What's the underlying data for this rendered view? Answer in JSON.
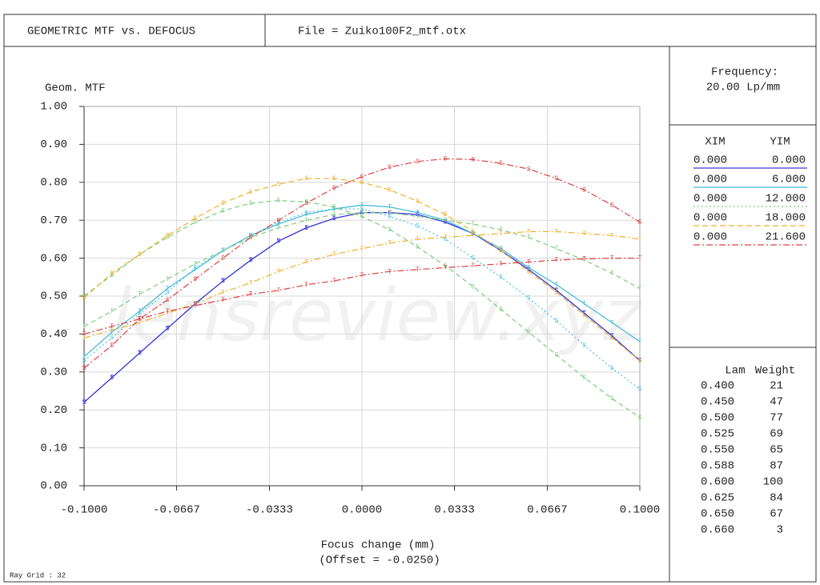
{
  "header": {
    "title": "GEOMETRIC MTF vs. DEFOCUS",
    "file": "File = Zuiko100F2_mtf.otx"
  },
  "frequency": {
    "label": "Frequency:",
    "value": "20.00  Lp/mm"
  },
  "fields": {
    "headers": [
      "XIM",
      "YIM"
    ],
    "rows": [
      {
        "xim": "0.000",
        "yim": "0.000",
        "color": "#3a3ad8",
        "dash": "none"
      },
      {
        "xim": "0.000",
        "yim": "6.000",
        "color": "#3cb8d8",
        "dash": "none"
      },
      {
        "xim": "0.000",
        "yim": "12.000",
        "color": "#7ccc7c",
        "dash": "2 3"
      },
      {
        "xim": "0.000",
        "yim": "18.000",
        "color": "#f0b030",
        "dash": "7 4"
      },
      {
        "xim": "0.000",
        "yim": "21.600",
        "color": "#e04040",
        "dash": "8 3 2 3"
      }
    ]
  },
  "wavelengths": {
    "headers": [
      "Lam",
      "Weight"
    ],
    "rows": [
      [
        "0.400",
        "21"
      ],
      [
        "0.450",
        "47"
      ],
      [
        "0.500",
        "77"
      ],
      [
        "0.525",
        "69"
      ],
      [
        "0.550",
        "65"
      ],
      [
        "0.588",
        "87"
      ],
      [
        "0.600",
        "100"
      ],
      [
        "0.625",
        "84"
      ],
      [
        "0.650",
        "67"
      ],
      [
        "0.660",
        "3"
      ]
    ]
  },
  "footer": "Ray Grid : 32",
  "watermark": "lensreview.xyz",
  "chart_data": {
    "type": "line",
    "ylabel": "Geom. MTF",
    "xlabel": "Focus change (mm)",
    "xsublabel": "(Offset = -0.0250)",
    "x": [
      -0.1,
      -0.09,
      -0.08,
      -0.07,
      -0.06,
      -0.05,
      -0.04,
      -0.03,
      -0.02,
      -0.01,
      0,
      0.01,
      0.02,
      0.03,
      0.04,
      0.05,
      0.06,
      0.07,
      0.08,
      0.09,
      0.1
    ],
    "xlim": [
      -0.1,
      0.1
    ],
    "ylim": [
      0,
      1
    ],
    "grid": true,
    "xticks": [
      {
        "value": -0.1,
        "label": "-0.1000"
      },
      {
        "value": -0.0667,
        "label": "-0.0667"
      },
      {
        "value": -0.0333,
        "label": "-0.0333"
      },
      {
        "value": 0,
        "label": "0.0000"
      },
      {
        "value": 0.0333,
        "label": "0.0333"
      },
      {
        "value": 0.0667,
        "label": "0.0667"
      },
      {
        "value": 0.1,
        "label": "0.1000"
      }
    ],
    "yticks": [
      {
        "value": 0,
        "label": "0.00"
      },
      {
        "value": 0.1,
        "label": "0.10"
      },
      {
        "value": 0.2,
        "label": "0.20"
      },
      {
        "value": 0.3,
        "label": "0.30"
      },
      {
        "value": 0.4,
        "label": "0.40"
      },
      {
        "value": 0.5,
        "label": "0.50"
      },
      {
        "value": 0.6,
        "label": "0.60"
      },
      {
        "value": 0.7,
        "label": "0.70"
      },
      {
        "value": 0.8,
        "label": "0.80"
      },
      {
        "value": 0.9,
        "label": "0.90"
      },
      {
        "value": 1,
        "label": "1.00"
      }
    ],
    "series": [
      {
        "marker": "T",
        "color": "#3a3ad8",
        "dash": "none",
        "values": [
          0.22,
          0.285,
          0.35,
          0.415,
          0.48,
          0.54,
          0.595,
          0.645,
          0.68,
          0.705,
          0.72,
          0.72,
          0.715,
          0.695,
          0.665,
          0.62,
          0.57,
          0.515,
          0.455,
          0.395,
          0.33
        ]
      },
      {
        "marker": "S",
        "color": "#3a3ad8",
        "dash": "none",
        "values": [
          0.22,
          0.285,
          0.35,
          0.415,
          0.48,
          0.54,
          0.595,
          0.645,
          0.68,
          0.705,
          0.72,
          0.72,
          0.715,
          0.695,
          0.665,
          0.62,
          0.57,
          0.515,
          0.455,
          0.395,
          0.33
        ]
      },
      {
        "marker": "T",
        "color": "#3cb8d8",
        "dash": "none",
        "values": [
          0.34,
          0.405,
          0.46,
          0.52,
          0.57,
          0.62,
          0.66,
          0.69,
          0.715,
          0.73,
          0.74,
          0.735,
          0.72,
          0.7,
          0.665,
          0.625,
          0.575,
          0.53,
          0.48,
          0.43,
          0.38
        ]
      },
      {
        "marker": "S",
        "color": "#50c0e8",
        "dash": "2 3",
        "values": [
          0.33,
          0.39,
          0.455,
          0.51,
          0.575,
          0.62,
          0.66,
          0.695,
          0.72,
          0.73,
          0.73,
          0.71,
          0.685,
          0.65,
          0.6,
          0.55,
          0.495,
          0.435,
          0.37,
          0.31,
          0.255
        ]
      },
      {
        "marker": "T",
        "color": "#7ccc7c",
        "dash": "6 4",
        "values": [
          0.42,
          0.46,
          0.505,
          0.545,
          0.585,
          0.62,
          0.655,
          0.68,
          0.7,
          0.715,
          0.72,
          0.72,
          0.71,
          0.7,
          0.69,
          0.675,
          0.655,
          0.625,
          0.595,
          0.56,
          0.52
        ]
      },
      {
        "marker": "S",
        "color": "#7ccc7c",
        "dash": "6 4",
        "values": [
          0.5,
          0.555,
          0.61,
          0.655,
          0.695,
          0.725,
          0.745,
          0.752,
          0.748,
          0.735,
          0.71,
          0.675,
          0.63,
          0.58,
          0.525,
          0.465,
          0.405,
          0.345,
          0.285,
          0.23,
          0.18
        ]
      },
      {
        "marker": "T",
        "color": "#f0b030",
        "dash": "8 3 2 3",
        "values": [
          0.39,
          0.41,
          0.43,
          0.455,
          0.48,
          0.51,
          0.535,
          0.565,
          0.59,
          0.61,
          0.625,
          0.64,
          0.65,
          0.655,
          0.66,
          0.665,
          0.67,
          0.67,
          0.665,
          0.66,
          0.65
        ]
      },
      {
        "marker": "S",
        "color": "#f0b030",
        "dash": "7 4",
        "values": [
          0.495,
          0.56,
          0.61,
          0.66,
          0.705,
          0.745,
          0.775,
          0.795,
          0.81,
          0.81,
          0.8,
          0.78,
          0.75,
          0.715,
          0.67,
          0.62,
          0.565,
          0.51,
          0.45,
          0.39,
          0.33
        ]
      },
      {
        "marker": "T",
        "color": "#e04040",
        "dash": "8 3 2 3",
        "values": [
          0.4,
          0.42,
          0.44,
          0.46,
          0.475,
          0.49,
          0.505,
          0.515,
          0.53,
          0.54,
          0.555,
          0.565,
          0.57,
          0.575,
          0.58,
          0.585,
          0.59,
          0.595,
          0.598,
          0.6,
          0.6
        ]
      },
      {
        "marker": "S",
        "color": "#e04040",
        "dash": "8 3 2 3",
        "values": [
          0.31,
          0.37,
          0.44,
          0.49,
          0.545,
          0.6,
          0.655,
          0.7,
          0.745,
          0.785,
          0.815,
          0.84,
          0.855,
          0.862,
          0.86,
          0.85,
          0.835,
          0.81,
          0.78,
          0.74,
          0.695
        ]
      }
    ]
  }
}
